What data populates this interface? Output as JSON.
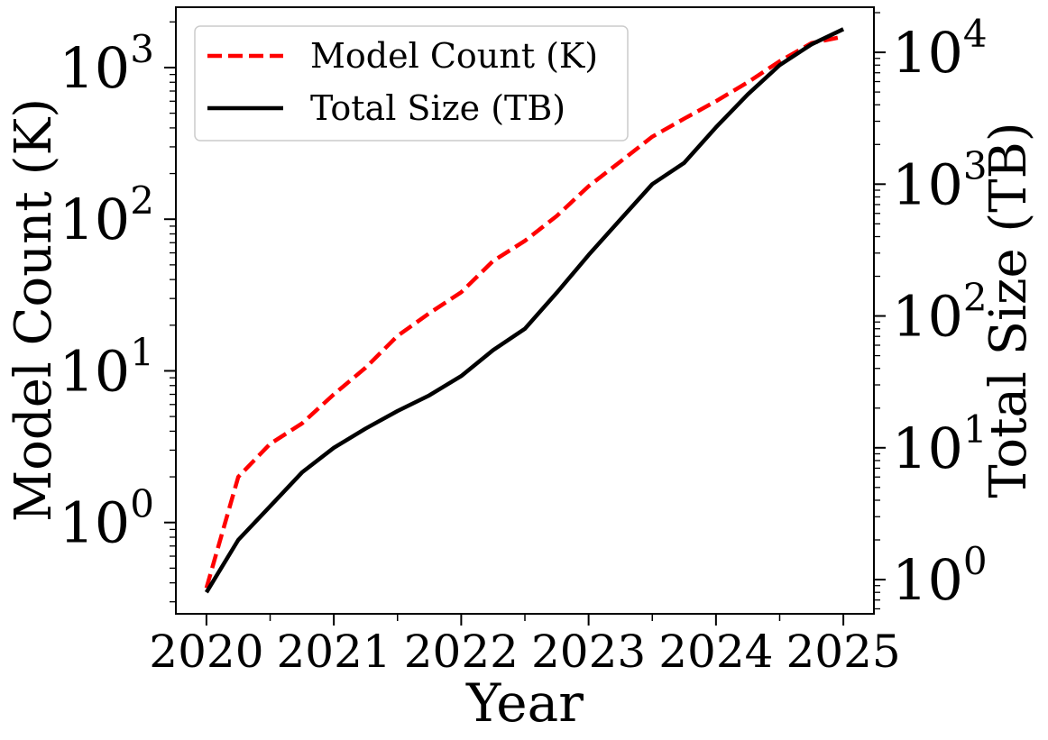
{
  "chart_data": {
    "type": "line",
    "xlabel": "Year",
    "ylabel_left": "Model Count (K)",
    "ylabel_right": "Total Size (TB)",
    "x_ticks": [
      "2020",
      "2021",
      "2022",
      "2023",
      "2024",
      "2025"
    ],
    "x_minor_ticks": [
      2020.5,
      2021.5,
      2022.5,
      2023.5,
      2024.5
    ],
    "xlim": [
      2019.76,
      2025.24
    ],
    "ylim_left": [
      0.25,
      2500
    ],
    "ylim_right": [
      0.55,
      22000
    ],
    "y_ticks_left": [
      {
        "base": "10",
        "exp": "0",
        "value": 1
      },
      {
        "base": "10",
        "exp": "1",
        "value": 10
      },
      {
        "base": "10",
        "exp": "2",
        "value": 100
      },
      {
        "base": "10",
        "exp": "3",
        "value": 1000
      }
    ],
    "y_ticks_right": [
      {
        "base": "10",
        "exp": "0",
        "value": 1
      },
      {
        "base": "10",
        "exp": "1",
        "value": 10
      },
      {
        "base": "10",
        "exp": "2",
        "value": 100
      },
      {
        "base": "10",
        "exp": "3",
        "value": 1000
      },
      {
        "base": "10",
        "exp": "4",
        "value": 10000
      }
    ],
    "legend_position": "top-left",
    "series": [
      {
        "name": "Model Count (K)",
        "axis": "left",
        "color": "#ff0000",
        "style": "dashed",
        "x": [
          2020.0,
          2020.25,
          2020.5,
          2020.75,
          2021.0,
          2021.25,
          2021.5,
          2021.75,
          2022.0,
          2022.25,
          2022.5,
          2022.75,
          2023.0,
          2023.25,
          2023.5,
          2023.75,
          2024.0,
          2024.25,
          2024.5,
          2024.75,
          2025.0
        ],
        "values": [
          0.37,
          2.0,
          3.3,
          4.5,
          7.0,
          10.5,
          17,
          24,
          33,
          53,
          72,
          105,
          165,
          240,
          350,
          460,
          600,
          800,
          1100,
          1450,
          1600
        ]
      },
      {
        "name": "Total Size (TB)",
        "axis": "right",
        "color": "#000000",
        "style": "solid",
        "x": [
          2020.0,
          2020.25,
          2020.5,
          2020.75,
          2021.0,
          2021.25,
          2021.5,
          2021.75,
          2022.0,
          2022.25,
          2022.5,
          2022.75,
          2023.0,
          2023.25,
          2023.5,
          2023.75,
          2024.0,
          2024.25,
          2024.5,
          2024.75,
          2025.0
        ],
        "values": [
          0.8,
          2.0,
          3.6,
          6.5,
          10.0,
          14,
          19,
          25,
          35,
          55,
          80,
          150,
          290,
          540,
          1000,
          1450,
          2700,
          4800,
          8000,
          11500,
          15000
        ]
      }
    ]
  }
}
